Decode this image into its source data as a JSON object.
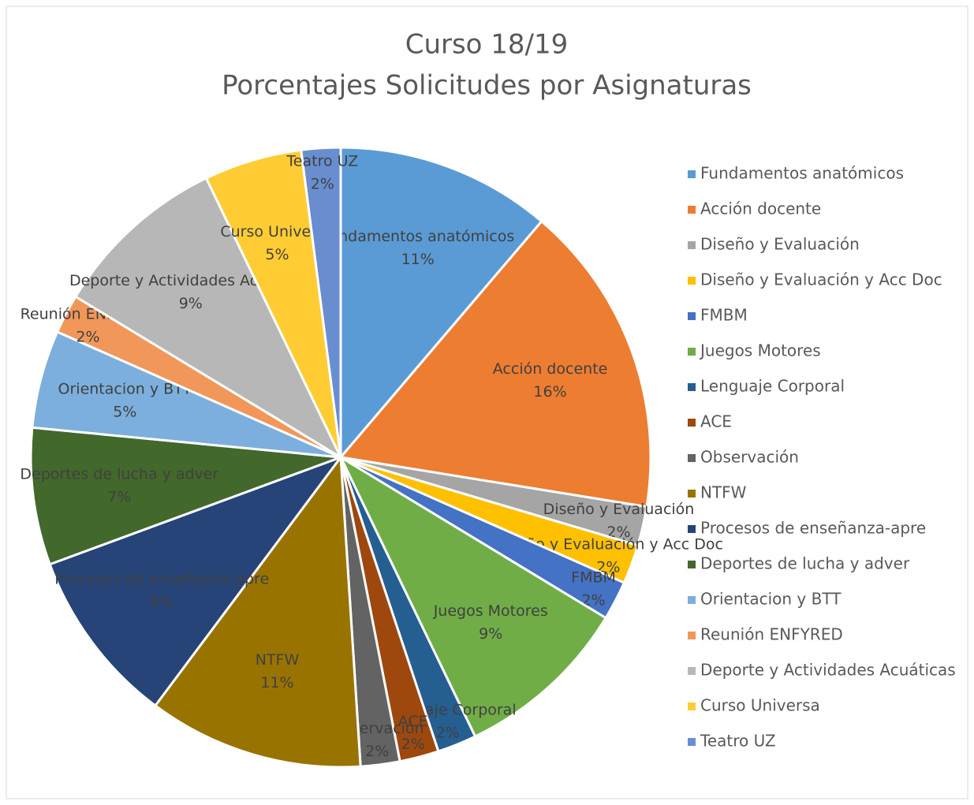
{
  "chart_data": {
    "type": "pie",
    "title": "Curso 18/19",
    "subtitle": "Porcentajes Solicitudes por Asignaturas",
    "categories": [
      "Fundamentos anatómicos",
      "Acción docente",
      "Diseño y Evaluación",
      "Diseño y Evaluación y Acc Doc",
      "FMBM",
      "Juegos Motores",
      "Lenguaje Corporal",
      "ACE",
      "Observación",
      "NTFW",
      "Procesos de enseñanza-apre",
      "Deportes de lucha y adver",
      "Orientacion y BTT",
      "Reunión ENFYRED",
      "Deporte y Actividades Acuáticas",
      "Curso Universa",
      "Teatro UZ"
    ],
    "values": [
      11,
      16,
      2,
      2,
      2,
      9,
      2,
      2,
      2,
      11,
      9,
      7,
      5,
      2,
      9,
      5,
      2
    ],
    "value_labels": [
      "11%",
      "16%",
      "2%",
      "2%",
      "2%",
      "9%",
      "2%",
      "2%",
      "2%",
      "11%",
      "9%",
      "7%",
      "5%",
      "2%",
      "9%",
      "5%",
      "2%"
    ],
    "colors": [
      "#5b9bd5",
      "#ed7d31",
      "#a5a5a5",
      "#ffc000",
      "#4472c4",
      "#70ad47",
      "#255e91",
      "#9e480e",
      "#636363",
      "#997300",
      "#264478",
      "#43682b",
      "#7cafdd",
      "#f1975a",
      "#b7b7b7",
      "#ffcd33",
      "#698ed0"
    ],
    "legend": "right"
  }
}
